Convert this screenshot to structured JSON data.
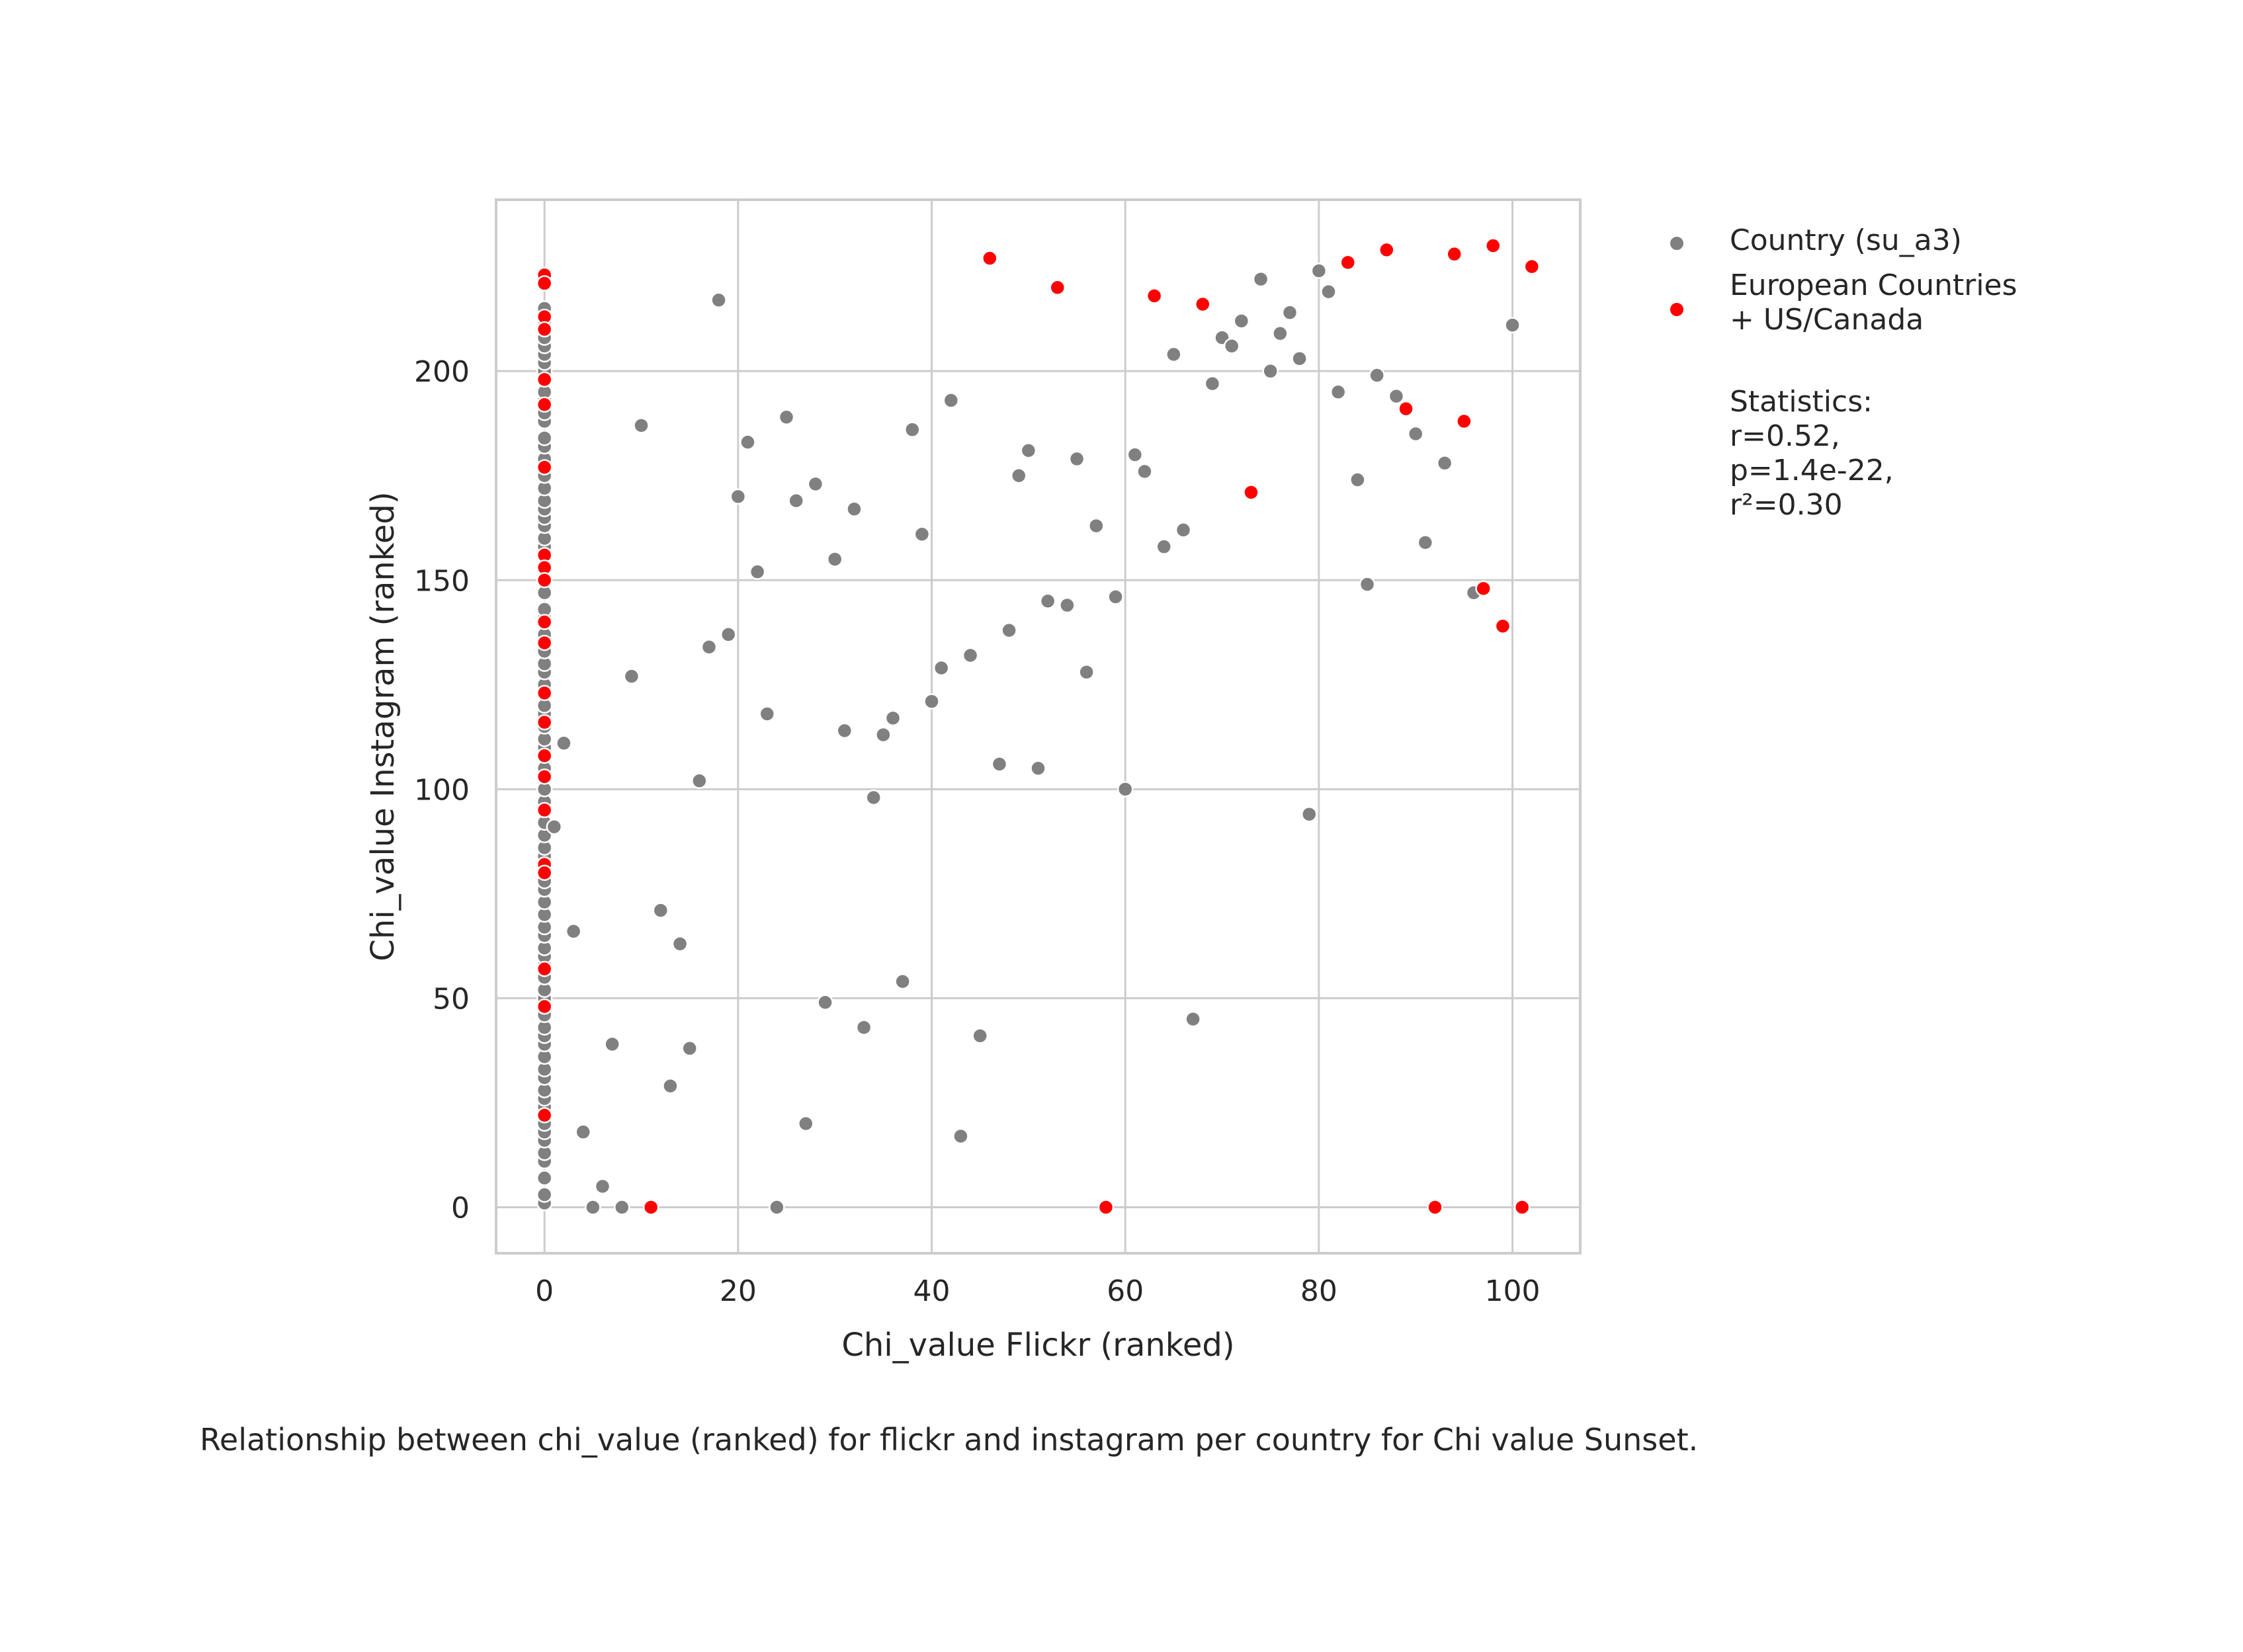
{
  "chart_data": {
    "type": "scatter",
    "title": "",
    "xlabel": "Chi_value Flickr (ranked)",
    "ylabel": "Chi_value Instagram (ranked)",
    "xlim": [
      -5,
      107
    ],
    "ylim": [
      -11,
      241
    ],
    "xticks": [
      0,
      20,
      40,
      60,
      80,
      100
    ],
    "yticks": [
      0,
      50,
      100,
      150,
      200
    ],
    "grid": true,
    "legend_position": "outside-right",
    "caption": "Relationship between chi_value (ranked) for flickr and instagram per country for Chi value Sunset.",
    "statistics": {
      "heading": "Statistics:",
      "lines": [
        "r=0.52,",
        "p=1.4e-22,",
        "r²=0.30"
      ]
    },
    "series": [
      {
        "name": "Country (su_a3)",
        "color": "#808080",
        "points": [
          [
            0,
            1
          ],
          [
            0,
            3
          ],
          [
            0,
            7
          ],
          [
            0,
            11
          ],
          [
            0,
            13
          ],
          [
            0,
            16
          ],
          [
            0,
            18
          ],
          [
            0,
            20
          ],
          [
            0,
            22
          ],
          [
            0,
            24
          ],
          [
            0,
            26
          ],
          [
            0,
            28
          ],
          [
            0,
            31
          ],
          [
            0,
            33
          ],
          [
            0,
            36
          ],
          [
            0,
            39
          ],
          [
            0,
            41
          ],
          [
            0,
            43
          ],
          [
            0,
            46
          ],
          [
            0,
            50
          ],
          [
            0,
            52
          ],
          [
            0,
            55
          ],
          [
            0,
            58
          ],
          [
            0,
            60
          ],
          [
            0,
            62
          ],
          [
            0,
            65
          ],
          [
            0,
            67
          ],
          [
            0,
            70
          ],
          [
            0,
            73
          ],
          [
            0,
            76
          ],
          [
            0,
            78
          ],
          [
            0,
            84
          ],
          [
            0,
            86
          ],
          [
            0,
            89
          ],
          [
            0,
            92
          ],
          [
            0,
            97
          ],
          [
            0,
            100
          ],
          [
            0,
            105
          ],
          [
            0,
            110
          ],
          [
            0,
            112
          ],
          [
            0,
            115
          ],
          [
            0,
            118
          ],
          [
            0,
            120
          ],
          [
            0,
            125
          ],
          [
            0,
            128
          ],
          [
            0,
            130
          ],
          [
            0,
            133
          ],
          [
            0,
            137
          ],
          [
            0,
            141
          ],
          [
            0,
            143
          ],
          [
            0,
            147
          ],
          [
            0,
            158
          ],
          [
            0,
            160
          ],
          [
            0,
            163
          ],
          [
            0,
            165
          ],
          [
            0,
            167
          ],
          [
            0,
            169
          ],
          [
            0,
            172
          ],
          [
            0,
            175
          ],
          [
            0,
            179
          ],
          [
            0,
            182
          ],
          [
            0,
            184
          ],
          [
            0,
            188
          ],
          [
            0,
            190
          ],
          [
            0,
            193
          ],
          [
            0,
            195
          ],
          [
            0,
            200
          ],
          [
            0,
            202
          ],
          [
            0,
            204
          ],
          [
            0,
            206
          ],
          [
            0,
            208
          ],
          [
            0,
            212
          ],
          [
            0,
            215
          ],
          [
            0,
            222
          ],
          [
            1,
            91
          ],
          [
            2,
            111
          ],
          [
            3,
            66
          ],
          [
            4,
            18
          ],
          [
            5,
            0
          ],
          [
            6,
            5
          ],
          [
            7,
            39
          ],
          [
            8,
            0
          ],
          [
            9,
            127
          ],
          [
            10,
            187
          ],
          [
            12,
            71
          ],
          [
            13,
            29
          ],
          [
            14,
            63
          ],
          [
            15,
            38
          ],
          [
            16,
            102
          ],
          [
            17,
            134
          ],
          [
            18,
            217
          ],
          [
            19,
            137
          ],
          [
            20,
            170
          ],
          [
            21,
            183
          ],
          [
            22,
            152
          ],
          [
            23,
            118
          ],
          [
            24,
            0
          ],
          [
            25,
            189
          ],
          [
            26,
            169
          ],
          [
            27,
            20
          ],
          [
            28,
            173
          ],
          [
            29,
            49
          ],
          [
            30,
            155
          ],
          [
            31,
            114
          ],
          [
            32,
            167
          ],
          [
            33,
            43
          ],
          [
            34,
            98
          ],
          [
            35,
            113
          ],
          [
            36,
            117
          ],
          [
            37,
            54
          ],
          [
            38,
            186
          ],
          [
            39,
            161
          ],
          [
            40,
            121
          ],
          [
            41,
            129
          ],
          [
            42,
            193
          ],
          [
            43,
            17
          ],
          [
            44,
            132
          ],
          [
            45,
            41
          ],
          [
            47,
            106
          ],
          [
            48,
            138
          ],
          [
            49,
            175
          ],
          [
            50,
            181
          ],
          [
            51,
            105
          ],
          [
            52,
            145
          ],
          [
            54,
            144
          ],
          [
            55,
            179
          ],
          [
            56,
            128
          ],
          [
            57,
            163
          ],
          [
            59,
            146
          ],
          [
            60,
            100
          ],
          [
            61,
            180
          ],
          [
            62,
            176
          ],
          [
            64,
            158
          ],
          [
            65,
            204
          ],
          [
            66,
            162
          ],
          [
            67,
            45
          ],
          [
            69,
            197
          ],
          [
            70,
            208
          ],
          [
            71,
            206
          ],
          [
            72,
            212
          ],
          [
            74,
            222
          ],
          [
            75,
            200
          ],
          [
            76,
            209
          ],
          [
            77,
            214
          ],
          [
            78,
            203
          ],
          [
            79,
            94
          ],
          [
            80,
            224
          ],
          [
            81,
            219
          ],
          [
            82,
            195
          ],
          [
            84,
            174
          ],
          [
            85,
            149
          ],
          [
            86,
            199
          ],
          [
            88,
            194
          ],
          [
            90,
            185
          ],
          [
            91,
            159
          ],
          [
            93,
            178
          ],
          [
            96,
            147
          ],
          [
            100,
            211
          ]
        ]
      },
      {
        "name": "European Countries\n+ US/Canada",
        "color": "#ff0000",
        "points": [
          [
            0,
            223
          ],
          [
            0,
            221
          ],
          [
            0,
            213
          ],
          [
            0,
            210
          ],
          [
            0,
            198
          ],
          [
            0,
            192
          ],
          [
            0,
            177
          ],
          [
            0,
            156
          ],
          [
            0,
            153
          ],
          [
            0,
            150
          ],
          [
            0,
            140
          ],
          [
            0,
            135
          ],
          [
            0,
            123
          ],
          [
            0,
            116
          ],
          [
            0,
            108
          ],
          [
            0,
            103
          ],
          [
            0,
            95
          ],
          [
            0,
            82
          ],
          [
            0,
            80
          ],
          [
            0,
            57
          ],
          [
            0,
            48
          ],
          [
            0,
            22
          ],
          [
            11,
            0
          ],
          [
            46,
            227
          ],
          [
            53,
            220
          ],
          [
            58,
            0
          ],
          [
            63,
            218
          ],
          [
            68,
            216
          ],
          [
            73,
            171
          ],
          [
            83,
            226
          ],
          [
            87,
            229
          ],
          [
            89,
            191
          ],
          [
            92,
            0
          ],
          [
            94,
            228
          ],
          [
            95,
            188
          ],
          [
            97,
            148
          ],
          [
            98,
            230
          ],
          [
            99,
            139
          ],
          [
            101,
            0
          ],
          [
            102,
            225
          ]
        ]
      }
    ]
  }
}
